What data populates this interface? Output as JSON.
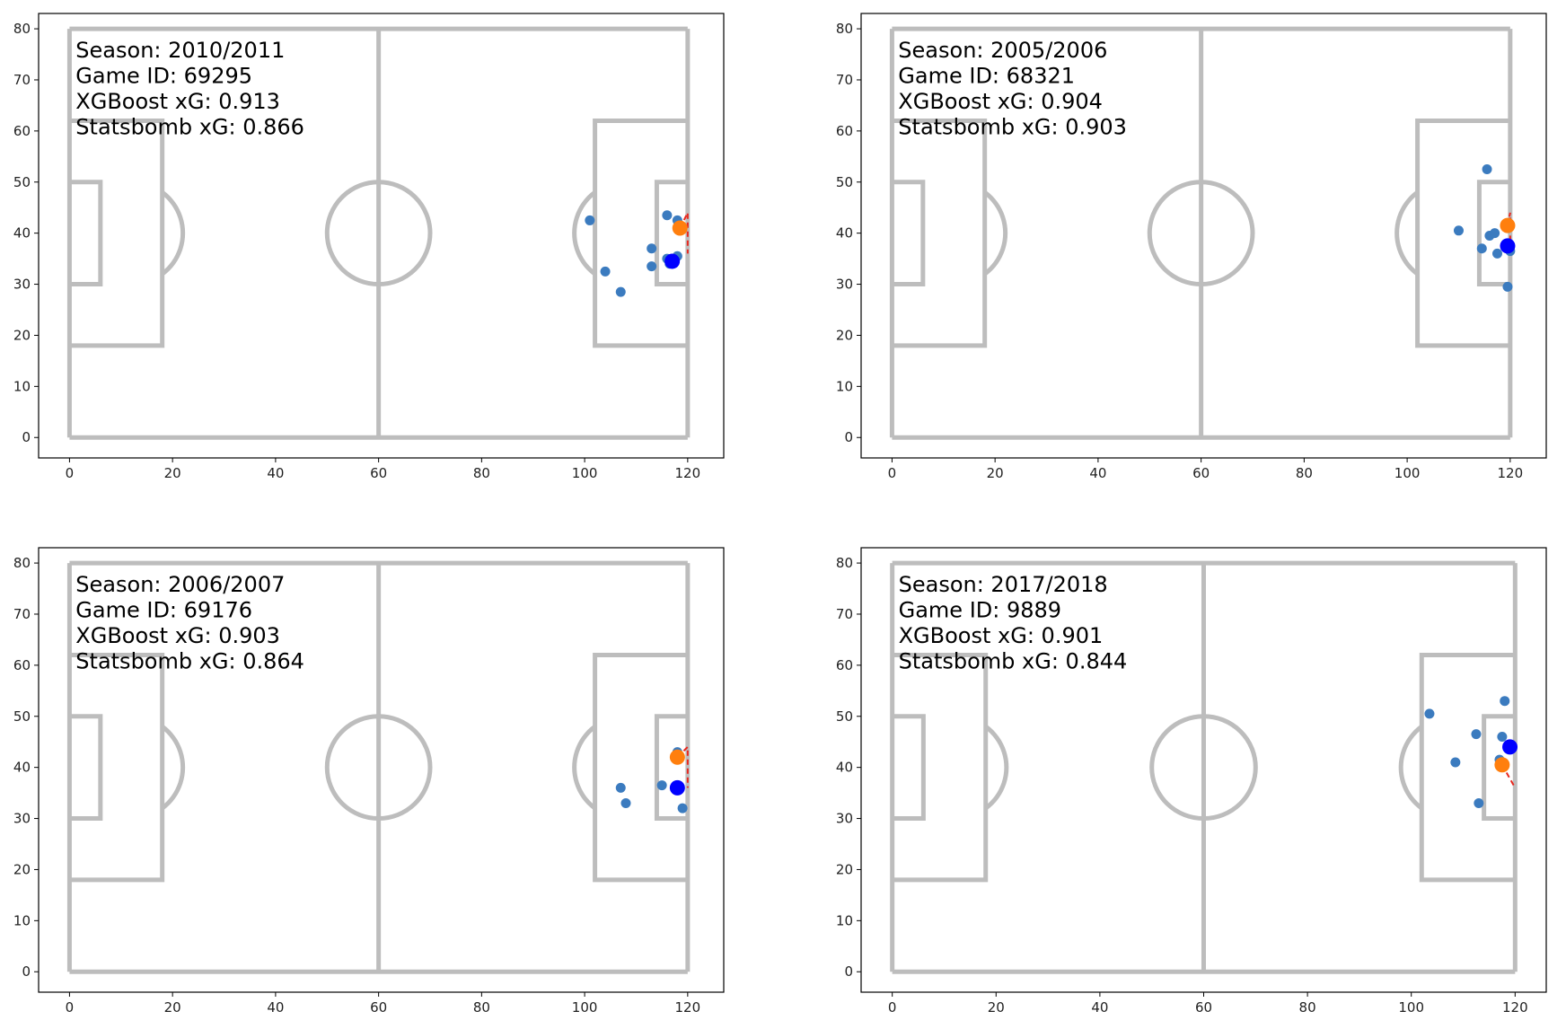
{
  "chart_data": [
    {
      "type": "scatter",
      "title": "",
      "xlabel": "",
      "ylabel": "",
      "xlim": [
        -6,
        127
      ],
      "ylim": [
        -4,
        83
      ],
      "xticks": [
        0,
        20,
        40,
        60,
        80,
        100,
        120
      ],
      "yticks": [
        0,
        10,
        20,
        30,
        40,
        50,
        60,
        70,
        80
      ],
      "info": [
        "Season: 2010/2011",
        "Game ID: 69295",
        "XGBoost xG: 0.913",
        "Statsbomb xG: 0.866"
      ],
      "shot": [
        118.5,
        41
      ],
      "keeper": [
        117,
        34.5
      ],
      "players": [
        [
          101,
          42.5
        ],
        [
          104,
          32.5
        ],
        [
          107,
          28.5
        ],
        [
          113,
          37
        ],
        [
          113,
          33.5
        ],
        [
          116,
          43.5
        ],
        [
          118,
          42.5
        ],
        [
          116,
          35
        ],
        [
          116.5,
          34
        ],
        [
          118,
          35.5
        ]
      ],
      "trajectory": [
        [
          118.5,
          41
        ],
        [
          120,
          44
        ],
        [
          120,
          36
        ]
      ]
    },
    {
      "type": "scatter",
      "title": "",
      "xlabel": "",
      "ylabel": "",
      "xlim": [
        -6,
        127
      ],
      "ylim": [
        -4,
        83
      ],
      "xticks": [
        0,
        20,
        40,
        60,
        80,
        100,
        120
      ],
      "yticks": [
        0,
        10,
        20,
        30,
        40,
        50,
        60,
        70,
        80
      ],
      "info": [
        "Season: 2005/2006",
        "Game ID: 68321",
        "XGBoost xG: 0.904",
        "Statsbomb xG: 0.903"
      ],
      "shot": [
        119.5,
        41.5
      ],
      "keeper": [
        119.5,
        37.5
      ],
      "players": [
        [
          110,
          40.5
        ],
        [
          115.5,
          52.5
        ],
        [
          114.5,
          37
        ],
        [
          116,
          39.5
        ],
        [
          117,
          40
        ],
        [
          117.5,
          36
        ],
        [
          120,
          36.5
        ],
        [
          119.5,
          29.5
        ]
      ],
      "trajectory": [
        [
          119.5,
          41.5
        ],
        [
          120,
          44
        ],
        [
          120,
          36
        ]
      ]
    },
    {
      "type": "scatter",
      "title": "",
      "xlabel": "",
      "ylabel": "",
      "xlim": [
        -6,
        127
      ],
      "ylim": [
        -4,
        83
      ],
      "xticks": [
        0,
        20,
        40,
        60,
        80,
        100,
        120
      ],
      "yticks": [
        0,
        10,
        20,
        30,
        40,
        50,
        60,
        70,
        80
      ],
      "info": [
        "Season: 2006/2007",
        "Game ID: 69176",
        "XGBoost xG: 0.903",
        "Statsbomb xG: 0.864"
      ],
      "shot": [
        118,
        42
      ],
      "keeper": [
        118,
        36
      ],
      "players": [
        [
          107,
          36
        ],
        [
          108,
          33
        ],
        [
          115,
          36.5
        ],
        [
          119,
          32
        ],
        [
          118,
          43
        ]
      ],
      "trajectory": [
        [
          118,
          42
        ],
        [
          120,
          44
        ],
        [
          120,
          36
        ]
      ]
    },
    {
      "type": "scatter",
      "title": "",
      "xlabel": "",
      "ylabel": "",
      "xlim": [
        -6,
        126
      ],
      "ylim": [
        -4,
        83
      ],
      "xticks": [
        0,
        20,
        40,
        60,
        80,
        100,
        120
      ],
      "yticks": [
        0,
        10,
        20,
        30,
        40,
        50,
        60,
        70,
        80
      ],
      "info": [
        "Season: 2017/2018",
        "Game ID: 9889",
        "XGBoost xG: 0.901",
        "Statsbomb xG: 0.844"
      ],
      "shot": [
        117.5,
        40.5
      ],
      "keeper": [
        119,
        44
      ],
      "players": [
        [
          103.5,
          50.5
        ],
        [
          108.5,
          41
        ],
        [
          112.5,
          46.5
        ],
        [
          113,
          33
        ],
        [
          117,
          41.5
        ],
        [
          117.5,
          46
        ],
        [
          118,
          53
        ]
      ],
      "trajectory": [
        [
          117.5,
          40.5
        ],
        [
          120,
          36
        ]
      ]
    }
  ],
  "colors": {
    "pitch_lines": "#bdbdbd",
    "player": "#3b7bbf",
    "keeper": "#0000ff",
    "shot": "#ff7f0e",
    "trajectory": "#e8281f"
  }
}
